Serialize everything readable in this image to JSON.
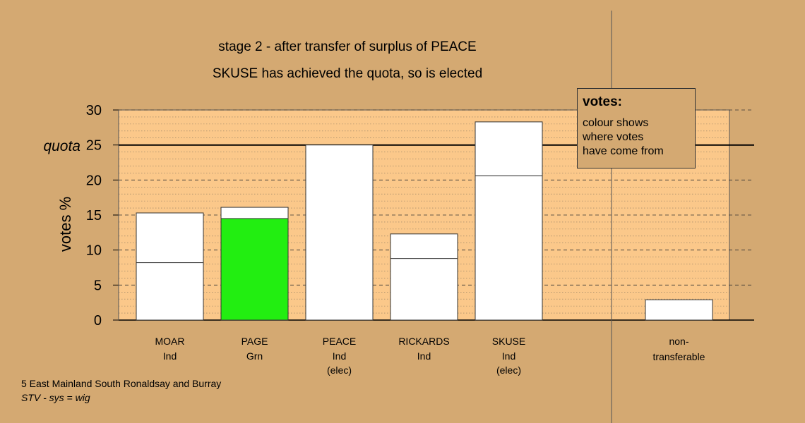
{
  "chart_data": {
    "type": "bar",
    "title": "stage 2 - after transfer of surplus of PEACE",
    "subtitle": "SKUSE has achieved the quota, so is elected",
    "ylabel": "votes %",
    "ylim": [
      0,
      30
    ],
    "yticks": [
      0,
      5,
      10,
      15,
      20,
      25,
      30
    ],
    "quota": 25,
    "quota_label": "quota",
    "grid": true,
    "categories": [
      {
        "name": "MOAR",
        "party": "Ind",
        "status": "",
        "base": 8.2,
        "transferred": 7.1,
        "base_color": "#ffffff"
      },
      {
        "name": "PAGE",
        "party": "Grn",
        "status": "",
        "base": 14.5,
        "transferred": 1.6,
        "base_color": "#22ee11"
      },
      {
        "name": "PEACE",
        "party": "Ind",
        "status": "(elec)",
        "base": 25.0,
        "transferred": 0,
        "base_color": "#ffffff"
      },
      {
        "name": "RICKARDS",
        "party": "Ind",
        "status": "",
        "base": 8.8,
        "transferred": 3.5,
        "base_color": "#ffffff"
      },
      {
        "name": "SKUSE",
        "party": "Ind",
        "status": "(elec)",
        "base": 20.6,
        "transferred": 7.7,
        "base_color": "#ffffff"
      }
    ],
    "nontransferable": {
      "label_line1": "non-",
      "label_line2": "transferable",
      "value": 2.9
    }
  },
  "legend": {
    "title": "votes:",
    "text": "colour shows\nwhere votes\nhave come from"
  },
  "footer": {
    "constituency": "5 East Mainland South Ronaldsay and Burray",
    "system": "STV - sys = wig"
  },
  "colors": {
    "background": "#d4a972",
    "plot_area": "#fbc88a",
    "bar_default": "#ffffff",
    "green": "#22ee11"
  }
}
